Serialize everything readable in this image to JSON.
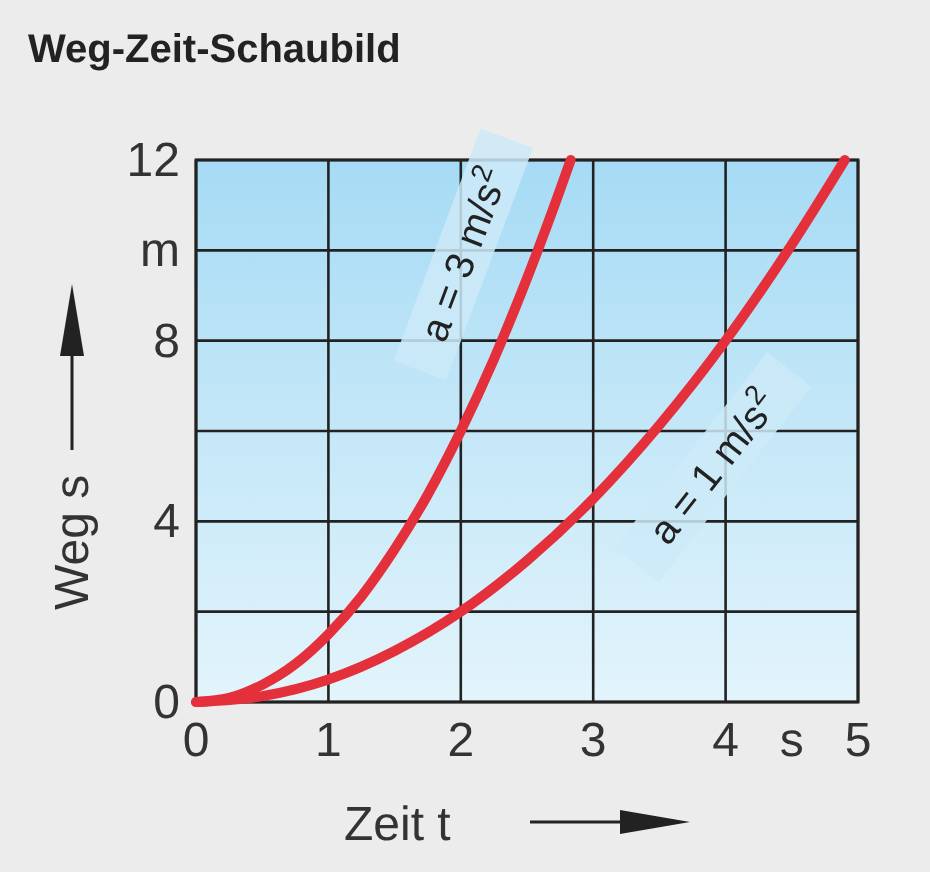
{
  "chart_data": {
    "type": "line",
    "title": "Weg-Zeit-Schaubild",
    "xlabel": "Zeit t",
    "ylabel": "Weg s",
    "xlim": [
      0,
      5
    ],
    "ylim": [
      0,
      12
    ],
    "xticks": [
      0,
      1,
      2,
      3,
      4,
      {
        "value": 4.5,
        "label": "s"
      },
      5
    ],
    "yticks": [
      0,
      {
        "value": 2,
        "label": null
      },
      4,
      {
        "value": 6,
        "label": null
      },
      8,
      {
        "value": 10,
        "label": "m"
      },
      12
    ],
    "grid": true,
    "line_style": "solid",
    "series": [
      {
        "color": "#e3303b",
        "x": [
          0,
          0.25,
          0.5,
          0.75,
          1,
          1.25,
          1.5,
          1.75,
          2,
          2.25,
          2.5,
          2.75,
          2.83
        ],
        "values": [
          0,
          0.09,
          0.38,
          0.84,
          1.5,
          2.34,
          3.38,
          4.59,
          6,
          7.59,
          9.38,
          11.34,
          12
        ]
      },
      {
        "color": "#e3303b",
        "x": [
          0,
          0.5,
          1,
          1.5,
          2,
          2.5,
          3,
          3.5,
          4,
          4.5,
          4.9
        ],
        "values": [
          0,
          0.13,
          0.5,
          1.13,
          2,
          3.13,
          4.5,
          6.13,
          8,
          10.13,
          12
        ]
      }
    ],
    "annotations": [
      "a = 3 m/s$^{2}$",
      "a = 1 m/s$^{2}$"
    ]
  }
}
